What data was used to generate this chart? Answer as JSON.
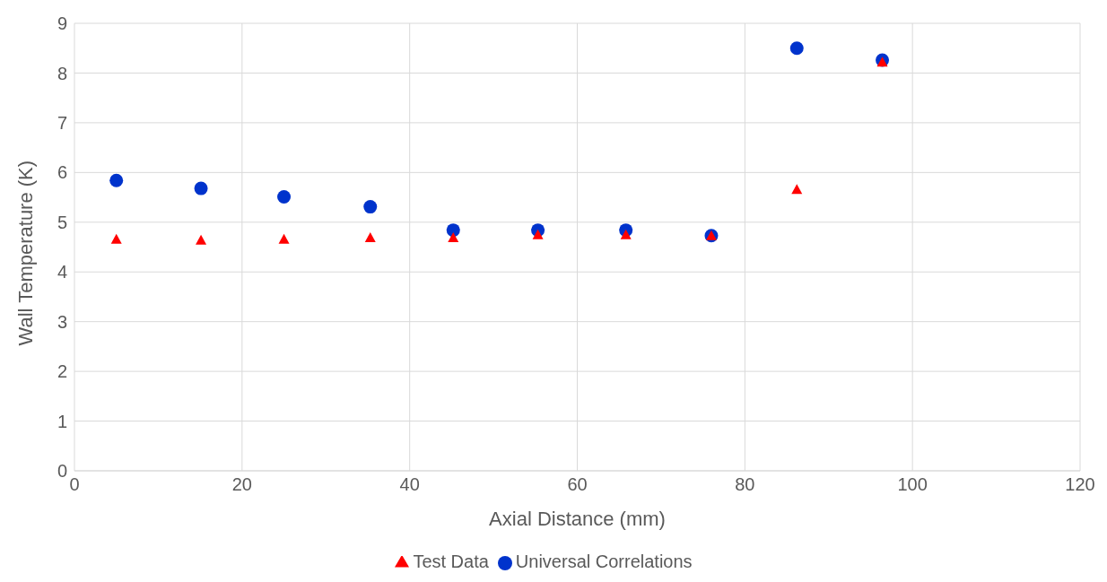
{
  "chart_data": {
    "type": "scatter",
    "xlabel": "Axial Distance (mm)",
    "ylabel": "Wall Temperature (K)",
    "x": [
      5.0,
      15.1,
      25.0,
      35.3,
      45.2,
      55.3,
      65.8,
      76.0,
      86.2,
      96.4
    ],
    "series": [
      {
        "name": "Universal Correlations",
        "color": "#0033cc",
        "marker": "circle",
        "values": [
          5.84,
          5.68,
          5.51,
          5.31,
          4.84,
          4.84,
          4.84,
          4.73,
          8.5,
          8.26
        ]
      },
      {
        "name": "Test Data",
        "color": "#ff0000",
        "marker": "triangle",
        "values": [
          4.66,
          4.64,
          4.66,
          4.69,
          4.69,
          4.75,
          4.75,
          4.73,
          5.66,
          8.22
        ]
      }
    ],
    "xlim": [
      0,
      120
    ],
    "xticks": [
      0,
      20,
      40,
      60,
      80,
      100,
      120
    ],
    "ylim": [
      0,
      9
    ],
    "yticks": [
      0,
      1,
      2,
      3,
      4,
      5,
      6,
      7,
      8,
      9
    ],
    "grid": true,
    "legend": "bottom"
  }
}
